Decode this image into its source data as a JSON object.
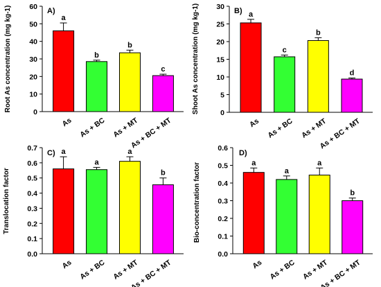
{
  "categories": [
    "As",
    "As + BC",
    "As + MT",
    "As + BC + MT"
  ],
  "colors": [
    "#ff0000",
    "#33ff33",
    "#ffff00",
    "#ff00ff"
  ],
  "chart_data": [
    {
      "type": "bar",
      "panel_label": "A)",
      "ylabel": "Root As concentration (mg kg-1)",
      "categories": [
        "As",
        "As + BC",
        "As + MT",
        "As + BC + MT"
      ],
      "values": [
        46,
        28.5,
        33.5,
        20.5
      ],
      "errors": [
        4.5,
        0.8,
        1.5,
        0.8
      ],
      "letters": [
        "a",
        "b",
        "b",
        "c"
      ],
      "ylim": [
        0,
        60
      ],
      "yticks": [
        0,
        10,
        20,
        30,
        40,
        50,
        60
      ],
      "ytick_labels": [
        "0",
        "10",
        "20",
        "30",
        "40",
        "50",
        "60"
      ]
    },
    {
      "type": "bar",
      "panel_label": "B)",
      "ylabel": "Shoot As concentration (mg kg-1)",
      "categories": [
        "As",
        "As + BC",
        "As + MT",
        "As + BC + MT"
      ],
      "values": [
        25.3,
        15.7,
        20.3,
        9.4
      ],
      "errors": [
        1.0,
        0.5,
        0.8,
        0.3
      ],
      "letters": [
        "a",
        "c",
        "b",
        "d"
      ],
      "ylim": [
        0,
        30
      ],
      "yticks": [
        0,
        5,
        10,
        15,
        20,
        25,
        30
      ],
      "ytick_labels": [
        "0",
        "5",
        "10",
        "15",
        "20",
        "25",
        "30"
      ]
    },
    {
      "type": "bar",
      "panel_label": "C)",
      "ylabel": "Translocation factor",
      "categories": [
        "As",
        "As + BC",
        "As + MT",
        "As + BC + MT"
      ],
      "values": [
        0.56,
        0.555,
        0.61,
        0.455
      ],
      "errors": [
        0.08,
        0.015,
        0.03,
        0.045
      ],
      "letters": [
        "a",
        "a",
        "a",
        "b"
      ],
      "ylim": [
        0,
        0.7
      ],
      "yticks": [
        0,
        0.1,
        0.2,
        0.3,
        0.4,
        0.5,
        0.6,
        0.7
      ],
      "ytick_labels": [
        "0.0",
        "0.1",
        "0.2",
        "0.3",
        "0.4",
        "0.5",
        "0.6",
        "0.7"
      ]
    },
    {
      "type": "bar",
      "panel_label": "D)",
      "ylabel": "Bio-concentration factor",
      "categories": [
        "As",
        "As + BC",
        "As + MT",
        "As + BC + MT"
      ],
      "values": [
        0.46,
        0.42,
        0.445,
        0.3
      ],
      "errors": [
        0.025,
        0.02,
        0.04,
        0.015
      ],
      "letters": [
        "a",
        "a",
        "a",
        "b"
      ],
      "ylim": [
        0,
        0.6
      ],
      "yticks": [
        0,
        0.1,
        0.2,
        0.3,
        0.4,
        0.5,
        0.6
      ],
      "ytick_labels": [
        "0.0",
        "0.1",
        "0.2",
        "0.3",
        "0.4",
        "0.5",
        "0.6"
      ]
    }
  ]
}
